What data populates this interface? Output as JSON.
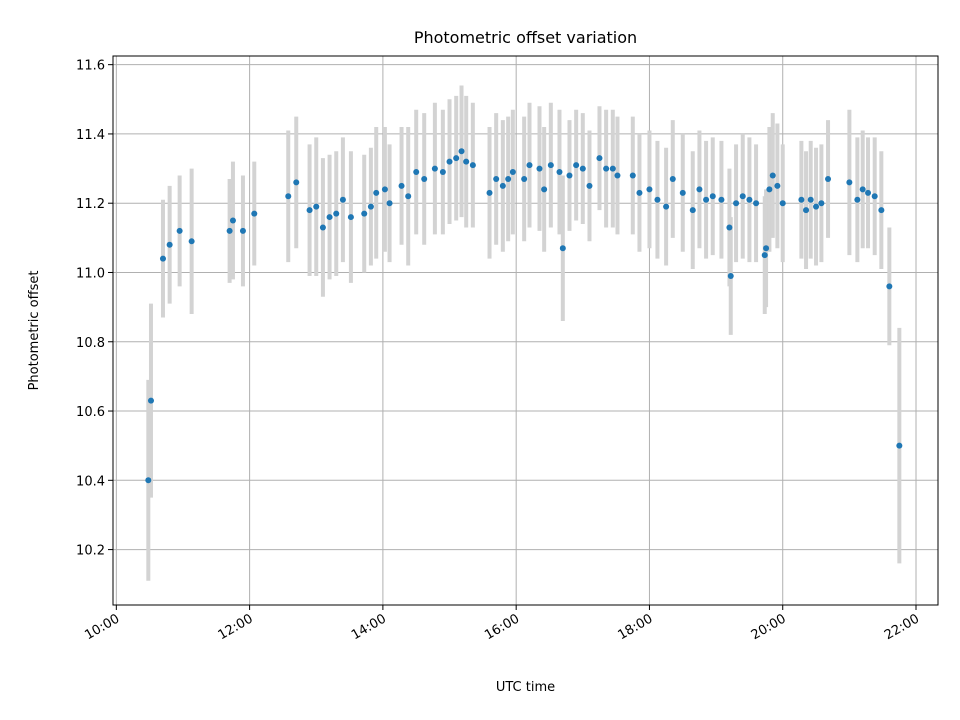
{
  "chart_data": {
    "type": "scatter",
    "title": "Photometric offset variation",
    "xlabel": "UTC time",
    "ylabel": "Photometric offset",
    "xlim": [
      9.95,
      22.33
    ],
    "ylim": [
      10.04,
      11.625
    ],
    "x_ticks": [
      "10:00",
      "12:00",
      "14:00",
      "16:00",
      "18:00",
      "20:00",
      "22:00"
    ],
    "y_ticks": [
      "10.2",
      "10.4",
      "10.6",
      "10.8",
      "11.0",
      "11.2",
      "11.4",
      "11.6"
    ],
    "grid": true,
    "colors": {
      "point": "#1f77b4",
      "errorbar": "#d3d3d3",
      "grid": "#b0b0b0"
    },
    "points": [
      [
        10.48,
        10.4,
        0.29
      ],
      [
        10.52,
        10.63,
        0.28
      ],
      [
        10.7,
        11.04,
        0.17
      ],
      [
        10.8,
        11.08,
        0.17
      ],
      [
        10.95,
        11.12,
        0.16
      ],
      [
        11.13,
        11.09,
        0.21
      ],
      [
        11.7,
        11.12,
        0.15
      ],
      [
        11.75,
        11.15,
        0.17
      ],
      [
        11.9,
        11.12,
        0.16
      ],
      [
        12.07,
        11.17,
        0.15
      ],
      [
        12.58,
        11.22,
        0.19
      ],
      [
        12.7,
        11.26,
        0.19
      ],
      [
        12.9,
        11.18,
        0.19
      ],
      [
        13.0,
        11.19,
        0.2
      ],
      [
        13.1,
        11.13,
        0.2
      ],
      [
        13.2,
        11.16,
        0.18
      ],
      [
        13.3,
        11.17,
        0.18
      ],
      [
        13.4,
        11.21,
        0.18
      ],
      [
        13.52,
        11.16,
        0.19
      ],
      [
        13.72,
        11.17,
        0.17
      ],
      [
        13.82,
        11.19,
        0.17
      ],
      [
        13.9,
        11.23,
        0.19
      ],
      [
        14.03,
        11.24,
        0.18
      ],
      [
        14.1,
        11.2,
        0.17
      ],
      [
        14.28,
        11.25,
        0.17
      ],
      [
        14.38,
        11.22,
        0.2
      ],
      [
        14.5,
        11.29,
        0.18
      ],
      [
        14.62,
        11.27,
        0.19
      ],
      [
        14.78,
        11.3,
        0.19
      ],
      [
        14.9,
        11.29,
        0.18
      ],
      [
        15.0,
        11.32,
        0.18
      ],
      [
        15.1,
        11.33,
        0.18
      ],
      [
        15.18,
        11.35,
        0.19
      ],
      [
        15.25,
        11.32,
        0.19
      ],
      [
        15.35,
        11.31,
        0.18
      ],
      [
        15.6,
        11.23,
        0.19
      ],
      [
        15.7,
        11.27,
        0.19
      ],
      [
        15.8,
        11.25,
        0.19
      ],
      [
        15.88,
        11.27,
        0.18
      ],
      [
        15.95,
        11.29,
        0.18
      ],
      [
        16.12,
        11.27,
        0.18
      ],
      [
        16.2,
        11.31,
        0.18
      ],
      [
        16.35,
        11.3,
        0.18
      ],
      [
        16.42,
        11.24,
        0.18
      ],
      [
        16.52,
        11.31,
        0.18
      ],
      [
        16.65,
        11.29,
        0.18
      ],
      [
        16.7,
        11.07,
        0.21
      ],
      [
        16.8,
        11.28,
        0.16
      ],
      [
        16.9,
        11.31,
        0.16
      ],
      [
        17.0,
        11.3,
        0.16
      ],
      [
        17.1,
        11.25,
        0.16
      ],
      [
        17.25,
        11.33,
        0.15
      ],
      [
        17.35,
        11.3,
        0.17
      ],
      [
        17.45,
        11.3,
        0.17
      ],
      [
        17.52,
        11.28,
        0.17
      ],
      [
        17.75,
        11.28,
        0.17
      ],
      [
        17.85,
        11.23,
        0.17
      ],
      [
        18.0,
        11.24,
        0.17
      ],
      [
        18.12,
        11.21,
        0.17
      ],
      [
        18.25,
        11.19,
        0.17
      ],
      [
        18.35,
        11.27,
        0.17
      ],
      [
        18.5,
        11.23,
        0.17
      ],
      [
        18.65,
        11.18,
        0.17
      ],
      [
        18.75,
        11.24,
        0.17
      ],
      [
        18.85,
        11.21,
        0.17
      ],
      [
        18.95,
        11.22,
        0.17
      ],
      [
        19.08,
        11.21,
        0.17
      ],
      [
        19.2,
        11.13,
        0.17
      ],
      [
        19.22,
        10.99,
        0.17
      ],
      [
        19.3,
        11.2,
        0.17
      ],
      [
        19.4,
        11.22,
        0.18
      ],
      [
        19.5,
        11.21,
        0.18
      ],
      [
        19.6,
        11.2,
        0.17
      ],
      [
        19.73,
        11.05,
        0.17
      ],
      [
        19.75,
        11.07,
        0.17
      ],
      [
        19.8,
        11.24,
        0.18
      ],
      [
        19.85,
        11.28,
        0.18
      ],
      [
        19.92,
        11.25,
        0.18
      ],
      [
        20.0,
        11.2,
        0.17
      ],
      [
        20.28,
        11.21,
        0.17
      ],
      [
        20.35,
        11.18,
        0.17
      ],
      [
        20.42,
        11.21,
        0.17
      ],
      [
        20.5,
        11.19,
        0.17
      ],
      [
        20.58,
        11.2,
        0.17
      ],
      [
        20.68,
        11.27,
        0.17
      ],
      [
        21.0,
        11.26,
        0.21
      ],
      [
        21.12,
        11.21,
        0.18
      ],
      [
        21.2,
        11.24,
        0.17
      ],
      [
        21.28,
        11.23,
        0.16
      ],
      [
        21.38,
        11.22,
        0.17
      ],
      [
        21.48,
        11.18,
        0.17
      ],
      [
        21.6,
        10.96,
        0.17
      ],
      [
        21.75,
        10.5,
        0.34
      ]
    ]
  }
}
